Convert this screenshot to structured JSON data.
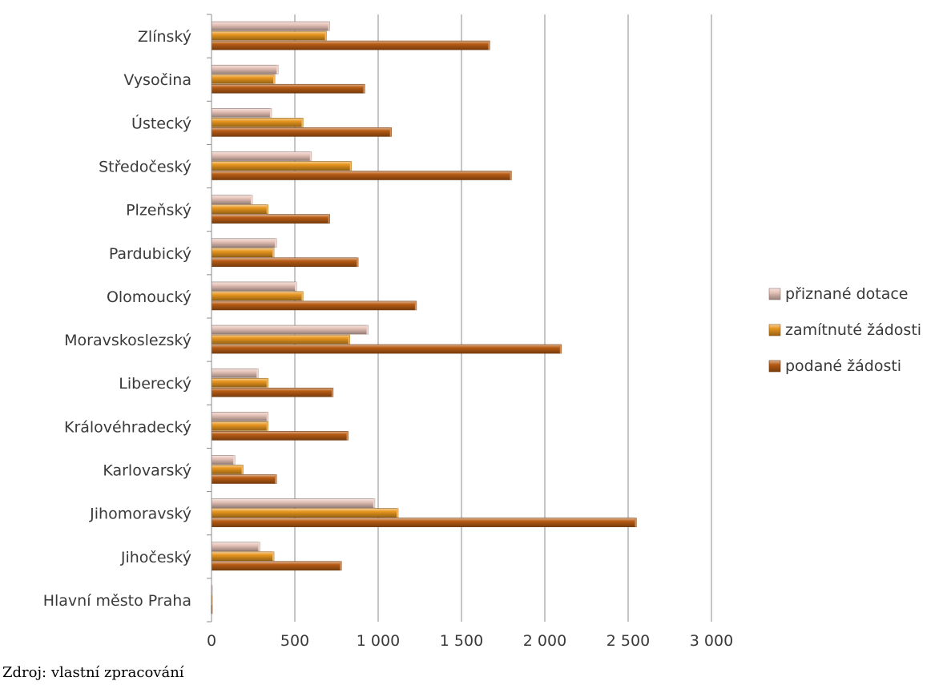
{
  "chart_data": {
    "type": "bar",
    "orientation": "horizontal",
    "categories": [
      "Hlavní město Praha",
      "Jihočeský",
      "Jihomoravský",
      "Karlovarský",
      "Královéhradecký",
      "Liberecký",
      "Moravskoslezský",
      "Olomoucký",
      "Pardubický",
      "Plzeňský",
      "Středočeský",
      "Ústecký",
      "Vysočina",
      "Zlínský"
    ],
    "series": [
      {
        "name": "podané žádosti",
        "color": "#b85c14",
        "values": [
          4,
          780,
          2550,
          390,
          820,
          730,
          2100,
          1230,
          880,
          710,
          1800,
          1080,
          920,
          1670
        ]
      },
      {
        "name": "zamítnuté žádosti",
        "color": "#e8961e",
        "values": [
          2,
          375,
          1120,
          190,
          340,
          340,
          830,
          550,
          375,
          340,
          840,
          550,
          380,
          690
        ]
      },
      {
        "name": "přiznané dotace",
        "color": "#e6c3b8",
        "values": [
          2,
          290,
          980,
          140,
          340,
          280,
          940,
          510,
          390,
          245,
          600,
          360,
          400,
          710
        ]
      }
    ],
    "xlim": [
      0,
      3000
    ],
    "xticks": [
      "0",
      "500",
      "1 000",
      "1 500",
      "2 000",
      "2 500",
      "3 000"
    ],
    "grid": true,
    "legend_position": "right"
  },
  "source_note": "Zdroj: vlastní zpracování"
}
